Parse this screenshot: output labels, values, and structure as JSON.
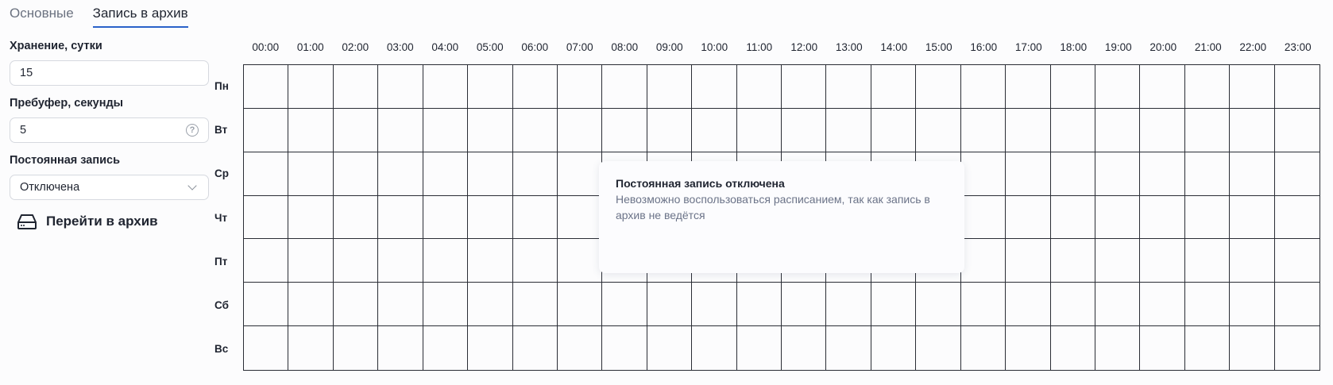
{
  "tabs": [
    {
      "label": "Основные",
      "active": false
    },
    {
      "label": "Запись в архив",
      "active": true
    }
  ],
  "form": {
    "storage": {
      "label": "Хранение, сутки",
      "value": "15"
    },
    "prebuffer": {
      "label": "Пребуфер, секунды",
      "value": "5",
      "icon": "help-circle-icon"
    },
    "continuous": {
      "label": "Постоянная запись",
      "value": "Отключена",
      "icon": "chevron-down-icon"
    },
    "archive_button": {
      "label": "Перейти в архив",
      "icon": "hard-drive-icon"
    }
  },
  "schedule": {
    "hours": [
      "00:00",
      "01:00",
      "02:00",
      "03:00",
      "04:00",
      "05:00",
      "06:00",
      "07:00",
      "08:00",
      "09:00",
      "10:00",
      "11:00",
      "12:00",
      "13:00",
      "14:00",
      "15:00",
      "16:00",
      "17:00",
      "18:00",
      "19:00",
      "20:00",
      "21:00",
      "22:00",
      "23:00"
    ],
    "days": [
      "Пн",
      "Вт",
      "Ср",
      "Чт",
      "Пт",
      "Сб",
      "Вс"
    ]
  },
  "tooltip": {
    "title": "Постоянная запись отключена",
    "body": "Невозможно воспользоваться расписанием, так как запись в архив не ведётся"
  },
  "colors": {
    "accent": "#2a62c9",
    "grid_line": "#2a2d35"
  }
}
